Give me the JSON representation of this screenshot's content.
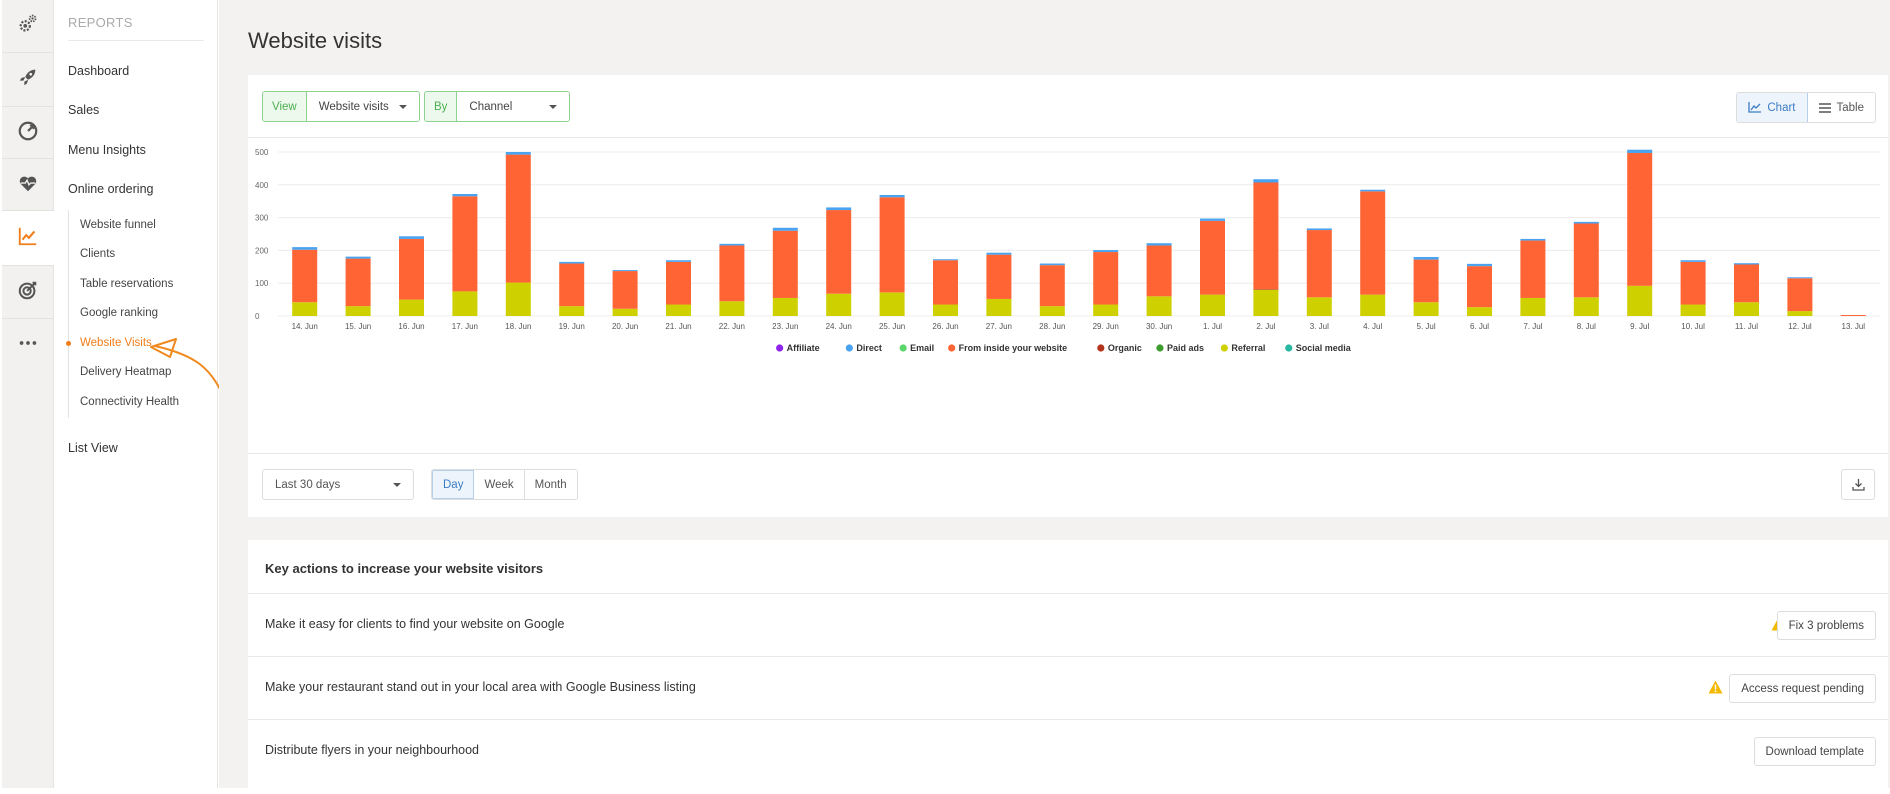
{
  "nav": {
    "heading": "REPORTS",
    "items": [
      {
        "label": "Dashboard"
      },
      {
        "label": "Sales"
      },
      {
        "label": "Menu Insights"
      },
      {
        "label": "Online ordering"
      }
    ],
    "sub_items": [
      {
        "label": "Website funnel"
      },
      {
        "label": "Clients"
      },
      {
        "label": "Table reservations"
      },
      {
        "label": "Google ranking"
      },
      {
        "label": "Website Visits"
      },
      {
        "label": "Delivery Heatmap"
      },
      {
        "label": "Connectivity Health"
      }
    ],
    "active_sub": "Website Visits",
    "list_view": "List View"
  },
  "rail": {
    "icons": [
      "gears-icon",
      "rocket-icon",
      "gauge-icon",
      "heart-pulse-icon",
      "line-chart-icon",
      "target-icon",
      "more-icon"
    ],
    "active": "line-chart-icon",
    "accent_color": "#f07d19"
  },
  "page": {
    "title": "Website visits"
  },
  "filters": {
    "view_label": "View",
    "view_value": "Website visits",
    "by_label": "By",
    "by_value": "Channel"
  },
  "toggle": {
    "chart_label": "Chart",
    "table_label": "Table",
    "active": "Chart"
  },
  "chart_data": {
    "type": "bar",
    "stacked": true,
    "categories": [
      "14. Jun",
      "15. Jun",
      "16. Jun",
      "17. Jun",
      "18. Jun",
      "19. Jun",
      "20. Jun",
      "21. Jun",
      "22. Jun",
      "23. Jun",
      "24. Jun",
      "25. Jun",
      "26. Jun",
      "27. Jun",
      "28. Jun",
      "29. Jun",
      "30. Jun",
      "1. Jul",
      "2. Jul",
      "3. Jul",
      "4. Jul",
      "5. Jul",
      "6. Jul",
      "7. Jul",
      "8. Jul",
      "9. Jul",
      "10. Jul",
      "11. Jul",
      "12. Jul",
      "13. Jul"
    ],
    "ylim": [
      0,
      500
    ],
    "yticks": [
      0,
      100,
      200,
      300,
      400,
      500
    ],
    "grid": true,
    "legend_position": "bottom",
    "series": [
      {
        "name": "Affiliate",
        "color": "#8e24e8",
        "values": [
          0,
          0,
          0,
          0,
          0,
          0,
          0,
          0,
          0,
          0,
          0,
          0,
          0,
          0,
          0,
          0,
          0,
          0,
          0,
          0,
          0,
          0,
          0,
          0,
          0,
          0,
          0,
          0,
          0,
          0
        ]
      },
      {
        "name": "Direct",
        "color": "#4aa3f0",
        "values": [
          8,
          6,
          8,
          7,
          8,
          5,
          3,
          5,
          5,
          9,
          8,
          7,
          3,
          6,
          5,
          6,
          7,
          7,
          10,
          5,
          5,
          8,
          7,
          5,
          5,
          10,
          5,
          4,
          3,
          0
        ]
      },
      {
        "name": "Email",
        "color": "#5bd66b",
        "values": [
          0,
          0,
          0,
          0,
          0,
          0,
          0,
          0,
          0,
          0,
          0,
          0,
          0,
          0,
          0,
          0,
          0,
          0,
          0,
          0,
          0,
          0,
          0,
          0,
          0,
          0,
          0,
          0,
          0,
          0
        ]
      },
      {
        "name": "From inside your website",
        "color": "#ff6534",
        "values": [
          160,
          145,
          185,
          290,
          390,
          130,
          115,
          130,
          170,
          205,
          255,
          290,
          135,
          135,
          125,
          160,
          155,
          225,
          325,
          205,
          315,
          130,
          125,
          175,
          225,
          405,
          130,
          115,
          100,
          3
        ]
      },
      {
        "name": "Organic",
        "color": "#b5321c",
        "values": [
          0,
          0,
          0,
          0,
          0,
          0,
          0,
          0,
          0,
          0,
          0,
          0,
          0,
          0,
          0,
          0,
          0,
          0,
          2,
          0,
          0,
          0,
          0,
          0,
          0,
          0,
          0,
          0,
          0,
          0
        ]
      },
      {
        "name": "Paid ads",
        "color": "#3d9c2e",
        "values": [
          0,
          0,
          0,
          0,
          0,
          0,
          0,
          0,
          0,
          0,
          0,
          0,
          0,
          0,
          0,
          0,
          0,
          0,
          0,
          0,
          0,
          0,
          0,
          0,
          0,
          0,
          0,
          0,
          0,
          0
        ]
      },
      {
        "name": "Referral",
        "color": "#cfd000",
        "values": [
          42,
          30,
          50,
          75,
          102,
          30,
          22,
          35,
          45,
          55,
          68,
          72,
          35,
          52,
          30,
          35,
          60,
          65,
          80,
          57,
          65,
          42,
          27,
          55,
          57,
          92,
          35,
          42,
          15,
          0
        ]
      },
      {
        "name": "Social media",
        "color": "#26b8a0",
        "values": [
          0,
          0,
          0,
          0,
          0,
          0,
          0,
          0,
          0,
          0,
          0,
          0,
          0,
          0,
          0,
          0,
          0,
          0,
          0,
          0,
          0,
          0,
          0,
          0,
          0,
          0,
          0,
          0,
          0,
          0
        ]
      }
    ]
  },
  "controls": {
    "range_value": "Last 30 days",
    "granularity": [
      "Day",
      "Week",
      "Month"
    ],
    "active_granularity": "Day"
  },
  "key_actions": {
    "title": "Key actions to increase your website visitors",
    "rows": [
      {
        "text": "Make it easy for clients to find your website on Google",
        "button": "Fix 3 problems",
        "warning": true
      },
      {
        "text": "Make your restaurant stand out in your local area with Google Business listing",
        "button": "Access request pending",
        "warning": true
      },
      {
        "text": "Distribute flyers in your neighbourhood",
        "button": "Download template",
        "warning": false
      }
    ],
    "warning_color": "#f5b800"
  }
}
